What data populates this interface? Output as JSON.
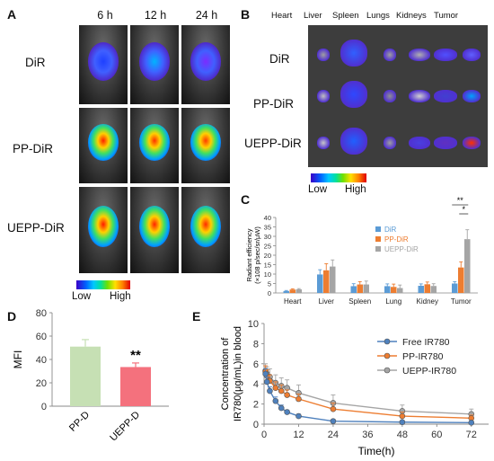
{
  "panelA": {
    "letter": "A",
    "times": [
      "6 h",
      "12 h",
      "24 h"
    ],
    "rows": [
      "DiR",
      "PP-DiR",
      "UEPP-DiR"
    ],
    "colorbar": {
      "low": "Low",
      "high": "High"
    }
  },
  "panelB": {
    "letter": "B",
    "organs": [
      "Heart",
      "Liver",
      "Spleen",
      "Lungs",
      "Kidneys",
      "Tumor"
    ],
    "rows": [
      "DiR",
      "PP-DiR",
      "UEPP-DiR"
    ],
    "colorbar": {
      "low": "Low",
      "high": "High"
    }
  },
  "panelC": {
    "letter": "C",
    "sig_upper": "**",
    "sig_lower": "*"
  },
  "panelD": {
    "letter": "D"
  },
  "panelE": {
    "letter": "E"
  },
  "chart_data": [
    {
      "id": "C",
      "type": "bar",
      "ylabel_lines": [
        "Radiant efficiency",
        "(×108 p/sec/sr/μW)"
      ],
      "categories": [
        "Heart",
        "Liver",
        "Spleen",
        "Lung",
        "Kidney",
        "Tumor"
      ],
      "ylim": [
        0,
        40
      ],
      "yticks": [
        0,
        5,
        10,
        15,
        20,
        25,
        30,
        35,
        40
      ],
      "legend_position": "top-right",
      "series": [
        {
          "name": "DiR",
          "color": "#5b9bd5",
          "values": [
            1,
            9.8,
            3.6,
            3.6,
            3.8,
            5
          ],
          "errors": [
            0.3,
            2.5,
            1.3,
            1.2,
            1.0,
            1.0
          ]
        },
        {
          "name": "PP-DiR",
          "color": "#ed7d31",
          "values": [
            1.8,
            12,
            4.5,
            3.2,
            4.6,
            13.5
          ],
          "errors": [
            0.4,
            3.5,
            1.5,
            1.5,
            1.2,
            3.0
          ]
        },
        {
          "name": "UEPP-DiR",
          "color": "#a5a5a5",
          "values": [
            1.9,
            14,
            4.5,
            2.6,
            3.7,
            28.5
          ],
          "errors": [
            0.4,
            3.5,
            1.8,
            1.6,
            1.2,
            5.0
          ]
        }
      ]
    },
    {
      "id": "D",
      "type": "bar",
      "ylabel": "MFI",
      "categories": [
        "PP-D",
        "UEPP-D"
      ],
      "values": [
        51,
        33.5
      ],
      "errors": [
        6,
        3.5
      ],
      "colors": [
        "#c6e0b4",
        "#f4717d"
      ],
      "annotation": "**",
      "ylim": [
        0,
        80
      ],
      "yticks": [
        0,
        20,
        40,
        60,
        80
      ]
    },
    {
      "id": "E",
      "type": "line",
      "xlabel": "Time(h)",
      "ylabel_lines": [
        "Concentration of",
        "IR780(μg/mL)in blood"
      ],
      "xlim": [
        0,
        78
      ],
      "ylim": [
        0,
        10
      ],
      "xticks": [
        0,
        12,
        24,
        36,
        48,
        60,
        72
      ],
      "yticks": [
        0,
        2,
        4,
        6,
        8,
        10
      ],
      "legend_position": "top-right",
      "series": [
        {
          "name": "Free IR780",
          "color": "#4f81bd",
          "x": [
            0.5,
            1,
            2,
            4,
            6,
            8,
            12,
            24,
            48,
            72
          ],
          "y": [
            5.0,
            4.2,
            3.3,
            2.3,
            1.6,
            1.2,
            0.8,
            0.3,
            0.2,
            0.15
          ],
          "err": [
            0.5,
            0.5,
            0.4,
            0.4,
            0.3,
            0.2,
            0.2,
            0.1,
            0.1,
            0.1
          ]
        },
        {
          "name": "PP-IR780",
          "color": "#ed7d31",
          "x": [
            0.5,
            1,
            2,
            4,
            6,
            8,
            12,
            24,
            48,
            72
          ],
          "y": [
            5.2,
            4.8,
            4.3,
            3.6,
            3.3,
            2.9,
            2.5,
            1.5,
            0.8,
            0.6
          ],
          "err": [
            0.6,
            0.6,
            0.6,
            0.6,
            0.6,
            0.5,
            0.5,
            0.6,
            0.4,
            0.3
          ]
        },
        {
          "name": "UEPP-IR780",
          "color": "#a5a5a5",
          "x": [
            0.5,
            1,
            2,
            4,
            6,
            8,
            12,
            24,
            48,
            72
          ],
          "y": [
            5.3,
            5.0,
            4.7,
            4.1,
            3.8,
            3.6,
            3.1,
            2.1,
            1.3,
            1.0
          ],
          "err": [
            0.7,
            0.7,
            0.8,
            0.8,
            0.8,
            0.8,
            0.8,
            0.8,
            0.6,
            0.5
          ]
        }
      ]
    }
  ]
}
